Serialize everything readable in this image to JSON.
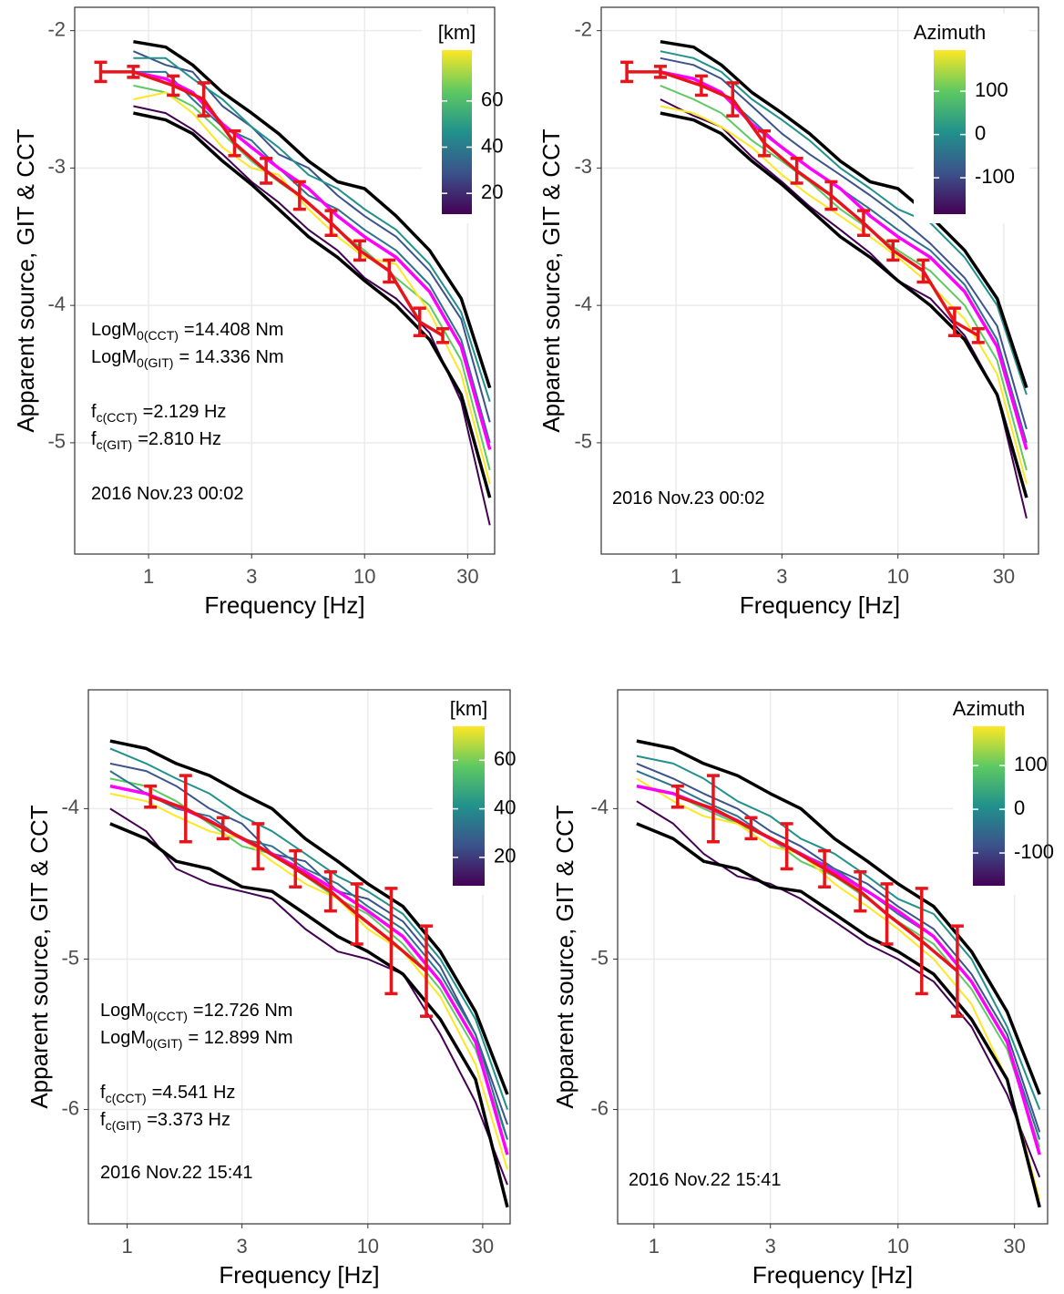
{
  "chart_data": [
    {
      "type": "line",
      "xlabel": "Frequency [Hz]",
      "ylabel": "Apparent source, GIT & CCT",
      "xscale": "log",
      "grid": true,
      "xlim": [
        0.455,
        40
      ],
      "ylim": [
        -5.81,
        -1.83
      ],
      "xticks": [
        1,
        3,
        10,
        30
      ],
      "yticks": [
        -2,
        -3,
        -4,
        -5
      ],
      "x": [
        0.85,
        1.2,
        1.6,
        2.2,
        3,
        4,
        5.5,
        7.5,
        10,
        14,
        20,
        28,
        38
      ],
      "series": [
        {
          "color": "#440154",
          "values": [
            -2.55,
            -2.6,
            -2.72,
            -2.9,
            -3.1,
            -3.25,
            -3.45,
            -3.6,
            -3.8,
            -3.95,
            -4.2,
            -4.7,
            -5.6
          ]
        },
        {
          "color": "#3b528b",
          "values": [
            -2.15,
            -2.25,
            -2.3,
            -2.55,
            -2.7,
            -2.9,
            -3.0,
            -3.2,
            -3.35,
            -3.5,
            -3.75,
            -4.1,
            -4.85
          ]
        },
        {
          "color": "#21918c",
          "values": [
            -2.2,
            -2.2,
            -2.35,
            -2.5,
            -2.7,
            -2.85,
            -3.05,
            -3.15,
            -3.3,
            -3.45,
            -3.7,
            -4.05,
            -4.7
          ]
        },
        {
          "color": "#5ec962",
          "values": [
            -2.4,
            -2.45,
            -2.55,
            -2.75,
            -2.95,
            -3.1,
            -3.25,
            -3.45,
            -3.6,
            -3.8,
            -4.0,
            -4.4,
            -5.2
          ]
        },
        {
          "color": "#fde725",
          "values": [
            -2.5,
            -2.45,
            -2.6,
            -2.85,
            -3.0,
            -3.05,
            -3.3,
            -3.5,
            -3.65,
            -3.7,
            -4.05,
            -4.5,
            -5.3
          ]
        },
        {
          "color": "#2c728e",
          "values": [
            -2.3,
            -2.3,
            -2.5,
            -2.7,
            -2.8,
            -3.0,
            -3.2,
            -3.3,
            -3.45,
            -3.6,
            -3.85,
            -4.25,
            -5.0
          ]
        },
        {
          "color": "#000000",
          "values": [
            -2.08,
            -2.12,
            -2.25,
            -2.45,
            -2.6,
            -2.75,
            -2.95,
            -3.1,
            -3.15,
            -3.35,
            -3.6,
            -3.95,
            -4.6
          ]
        },
        {
          "color": "#000000",
          "values": [
            -2.6,
            -2.65,
            -2.75,
            -2.95,
            -3.12,
            -3.3,
            -3.5,
            -3.65,
            -3.82,
            -4.0,
            -4.25,
            -4.65,
            -5.4
          ]
        },
        {
          "color": "#ff00ff",
          "values": [
            -2.3,
            -2.35,
            -2.45,
            -2.68,
            -2.85,
            -3.0,
            -3.15,
            -3.35,
            -3.5,
            -3.65,
            -3.9,
            -4.3,
            -5.05
          ]
        }
      ],
      "errorbars": {
        "color": "#e8141c",
        "x": [
          0.6,
          0.85,
          1.3,
          1.8,
          2.5,
          3.5,
          5,
          7,
          9.5,
          13,
          18,
          23
        ],
        "values": [
          -2.3,
          -2.3,
          -2.4,
          -2.5,
          -2.82,
          -3.02,
          -3.2,
          -3.4,
          -3.6,
          -3.75,
          -4.12,
          -4.22
        ],
        "errors": [
          0.07,
          0.04,
          0.07,
          0.12,
          0.09,
          0.09,
          0.1,
          0.09,
          0.07,
          0.08,
          0.1,
          0.05
        ]
      },
      "colorbar": {
        "title": "[km]",
        "lim": [
          11,
          82
        ],
        "ticks": [
          20,
          40,
          60
        ],
        "colors": [
          "#440154",
          "#3b528b",
          "#21918c",
          "#5ec962",
          "#fde725"
        ]
      },
      "annotations": [
        {
          "text": "LogM",
          "sub": "0(CCT)",
          "after": "=14.408 Nm"
        },
        {
          "text": "LogM",
          "sub": "0(GIT)",
          "after": "= 14.336 Nm"
        },
        {
          "text": "f",
          "sub": "c(CCT)",
          "after": "=2.129 Hz"
        },
        {
          "text": "f",
          "sub": "c(GIT)",
          "after": "=2.810 Hz"
        },
        {
          "text": "2016 Nov.23 00:02"
        }
      ]
    },
    {
      "type": "line",
      "xlabel": "Frequency [Hz]",
      "ylabel": "Apparent source, GIT & CCT",
      "xscale": "log",
      "grid": true,
      "xlim": [
        0.46,
        43
      ],
      "ylim": [
        -5.81,
        -1.83
      ],
      "xticks": [
        1,
        3,
        10,
        30
      ],
      "yticks": [
        -2,
        -3,
        -4,
        -5
      ],
      "x": [
        0.85,
        1.2,
        1.6,
        2.2,
        3,
        4,
        5.5,
        7.5,
        10,
        14,
        20,
        28,
        38
      ],
      "series": [
        {
          "color": "#440154",
          "values": [
            -2.5,
            -2.62,
            -2.7,
            -2.92,
            -3.1,
            -3.28,
            -3.45,
            -3.62,
            -3.82,
            -3.95,
            -4.22,
            -4.65,
            -5.55
          ]
        },
        {
          "color": "#3b528b",
          "values": [
            -2.2,
            -2.25,
            -2.35,
            -2.55,
            -2.75,
            -2.9,
            -3.05,
            -3.2,
            -3.35,
            -3.55,
            -3.8,
            -4.15,
            -4.9
          ]
        },
        {
          "color": "#21918c",
          "values": [
            -2.15,
            -2.2,
            -2.3,
            -2.5,
            -2.65,
            -2.8,
            -3.0,
            -3.15,
            -3.3,
            -3.4,
            -3.65,
            -4.0,
            -4.65
          ]
        },
        {
          "color": "#5ec962",
          "values": [
            -2.4,
            -2.5,
            -2.6,
            -2.8,
            -2.95,
            -3.1,
            -3.3,
            -3.45,
            -3.6,
            -3.75,
            -4.0,
            -4.4,
            -5.2
          ]
        },
        {
          "color": "#fde725",
          "values": [
            -2.55,
            -2.6,
            -2.7,
            -2.85,
            -3.05,
            -3.2,
            -3.35,
            -3.5,
            -3.65,
            -3.85,
            -4.1,
            -4.5,
            -5.3
          ]
        },
        {
          "color": "#2c728e",
          "values": [
            -2.3,
            -2.35,
            -2.45,
            -2.65,
            -2.85,
            -3.0,
            -3.15,
            -3.3,
            -3.45,
            -3.6,
            -3.85,
            -4.25,
            -5.0
          ]
        },
        {
          "color": "#000000",
          "values": [
            -2.08,
            -2.12,
            -2.25,
            -2.45,
            -2.6,
            -2.75,
            -2.95,
            -3.1,
            -3.15,
            -3.35,
            -3.6,
            -3.95,
            -4.6
          ]
        },
        {
          "color": "#000000",
          "values": [
            -2.6,
            -2.65,
            -2.75,
            -2.95,
            -3.12,
            -3.3,
            -3.5,
            -3.65,
            -3.82,
            -4.0,
            -4.25,
            -4.65,
            -5.4
          ]
        },
        {
          "color": "#ff00ff",
          "values": [
            -2.3,
            -2.35,
            -2.45,
            -2.68,
            -2.85,
            -3.0,
            -3.15,
            -3.35,
            -3.5,
            -3.65,
            -3.9,
            -4.3,
            -5.05
          ]
        }
      ],
      "errorbars": {
        "color": "#e8141c",
        "x": [
          0.6,
          0.85,
          1.3,
          1.8,
          2.5,
          3.5,
          5,
          7,
          9.5,
          13,
          18,
          23
        ],
        "values": [
          -2.3,
          -2.3,
          -2.4,
          -2.5,
          -2.82,
          -3.02,
          -3.2,
          -3.4,
          -3.6,
          -3.75,
          -4.12,
          -4.22
        ],
        "errors": [
          0.07,
          0.04,
          0.07,
          0.12,
          0.09,
          0.09,
          0.1,
          0.09,
          0.07,
          0.08,
          0.1,
          0.05
        ]
      },
      "colorbar": {
        "title": "Azimuth",
        "lim": [
          -184,
          195
        ],
        "ticks": [
          -100,
          0,
          100
        ],
        "colors": [
          "#440154",
          "#3b528b",
          "#21918c",
          "#5ec962",
          "#fde725"
        ]
      },
      "annotations": [
        {
          "text": "2016 Nov.23 00:02"
        }
      ]
    },
    {
      "type": "line",
      "xlabel": "Frequency [Hz]",
      "ylabel": "Apparent source, GIT & CCT",
      "xscale": "log",
      "grid": true,
      "xlim": [
        0.69,
        39
      ],
      "ylim": [
        -6.76,
        -3.21
      ],
      "xticks": [
        1,
        3,
        10,
        30
      ],
      "yticks": [
        -4,
        -5,
        -6
      ],
      "x": [
        0.85,
        1.2,
        1.6,
        2.2,
        3,
        4,
        5.5,
        7.5,
        10,
        14,
        20,
        28,
        38
      ],
      "series": [
        {
          "color": "#440154",
          "values": [
            -4.0,
            -4.15,
            -4.4,
            -4.5,
            -4.55,
            -4.6,
            -4.8,
            -4.95,
            -5.0,
            -5.1,
            -5.5,
            -5.95,
            -6.5
          ]
        },
        {
          "color": "#3b528b",
          "values": [
            -3.7,
            -3.75,
            -3.85,
            -4.0,
            -4.1,
            -4.3,
            -4.35,
            -4.55,
            -4.6,
            -4.75,
            -5.05,
            -5.5,
            -6.1
          ]
        },
        {
          "color": "#21918c",
          "values": [
            -3.6,
            -3.7,
            -3.8,
            -3.9,
            -4.05,
            -4.15,
            -4.3,
            -4.45,
            -4.55,
            -4.7,
            -5.0,
            -5.4,
            -6.0
          ]
        },
        {
          "color": "#5ec962",
          "values": [
            -3.8,
            -3.85,
            -3.95,
            -4.1,
            -4.25,
            -4.3,
            -4.45,
            -4.6,
            -4.7,
            -4.9,
            -5.2,
            -5.6,
            -6.2
          ]
        },
        {
          "color": "#fde725",
          "values": [
            -3.9,
            -3.95,
            -4.05,
            -4.15,
            -4.2,
            -4.35,
            -4.5,
            -4.6,
            -4.8,
            -4.95,
            -5.25,
            -5.7,
            -6.4
          ]
        },
        {
          "color": "#2c728e",
          "values": [
            -3.75,
            -3.9,
            -4.0,
            -4.05,
            -4.2,
            -4.25,
            -4.4,
            -4.5,
            -4.65,
            -4.8,
            -5.1,
            -5.5,
            -6.2
          ]
        },
        {
          "color": "#000000",
          "values": [
            -3.55,
            -3.6,
            -3.7,
            -3.78,
            -3.9,
            -4.0,
            -4.2,
            -4.35,
            -4.5,
            -4.65,
            -4.95,
            -5.35,
            -5.9
          ]
        },
        {
          "color": "#000000",
          "values": [
            -4.1,
            -4.2,
            -4.35,
            -4.4,
            -4.52,
            -4.55,
            -4.7,
            -4.85,
            -4.95,
            -5.1,
            -5.4,
            -5.8,
            -6.65
          ]
        },
        {
          "color": "#ff00ff",
          "values": [
            -3.85,
            -3.9,
            -3.98,
            -4.08,
            -4.2,
            -4.3,
            -4.42,
            -4.55,
            -4.68,
            -4.85,
            -5.15,
            -5.55,
            -6.3
          ]
        }
      ],
      "errorbars": {
        "color": "#e8141c",
        "x": [
          1.25,
          1.75,
          2.5,
          3.5,
          5,
          7,
          9,
          12.5,
          17.5
        ],
        "values": [
          -3.92,
          -4.0,
          -4.13,
          -4.25,
          -4.4,
          -4.55,
          -4.7,
          -4.88,
          -5.08
        ],
        "errors": [
          0.07,
          0.22,
          0.07,
          0.15,
          0.12,
          0.13,
          0.2,
          0.35,
          0.3
        ]
      },
      "colorbar": {
        "title": "[km]",
        "lim": [
          8.3,
          74
        ],
        "ticks": [
          20,
          40,
          60
        ],
        "colors": [
          "#440154",
          "#3b528b",
          "#21918c",
          "#5ec962",
          "#fde725"
        ]
      },
      "annotations": [
        {
          "text": "LogM",
          "sub": "0(CCT)",
          "after": "=12.726 Nm"
        },
        {
          "text": "LogM",
          "sub": "0(GIT)",
          "after": "= 12.899 Nm"
        },
        {
          "text": "f",
          "sub": "c(CCT)",
          "after": "=4.541 Hz"
        },
        {
          "text": "f",
          "sub": "c(GIT)",
          "after": "=3.373 Hz"
        },
        {
          "text": "2016 Nov.22 15:41"
        }
      ]
    },
    {
      "type": "line",
      "xlabel": "Frequency [Hz]",
      "ylabel": "Apparent source, GIT & CCT",
      "xscale": "log",
      "grid": true,
      "xlim": [
        0.71,
        41
      ],
      "ylim": [
        -6.76,
        -3.21
      ],
      "xticks": [
        1,
        3,
        10,
        30
      ],
      "yticks": [
        -4,
        -5,
        -6
      ],
      "x": [
        0.85,
        1.2,
        1.6,
        2.2,
        3,
        4,
        5.5,
        7.5,
        10,
        14,
        20,
        28,
        38
      ],
      "series": [
        {
          "color": "#440154",
          "values": [
            -3.95,
            -4.1,
            -4.3,
            -4.45,
            -4.5,
            -4.6,
            -4.75,
            -4.9,
            -5.0,
            -5.15,
            -5.45,
            -5.9,
            -6.45
          ]
        },
        {
          "color": "#3b528b",
          "values": [
            -3.7,
            -3.8,
            -3.9,
            -4.0,
            -4.15,
            -4.25,
            -4.4,
            -4.5,
            -4.65,
            -4.8,
            -5.1,
            -5.5,
            -6.15
          ]
        },
        {
          "color": "#21918c",
          "values": [
            -3.65,
            -3.7,
            -3.8,
            -3.95,
            -4.05,
            -4.2,
            -4.3,
            -4.45,
            -4.6,
            -4.7,
            -5.0,
            -5.45,
            -6.0
          ]
        },
        {
          "color": "#5ec962",
          "values": [
            -3.85,
            -3.9,
            -4.0,
            -4.1,
            -4.2,
            -4.35,
            -4.45,
            -4.6,
            -4.75,
            -4.9,
            -5.2,
            -5.6,
            -6.25
          ]
        },
        {
          "color": "#fde725",
          "values": [
            -3.8,
            -3.95,
            -4.05,
            -4.1,
            -4.25,
            -4.3,
            -4.5,
            -4.65,
            -4.8,
            -5.0,
            -5.3,
            -5.8,
            -6.6
          ]
        },
        {
          "color": "#2c728e",
          "values": [
            -3.75,
            -3.85,
            -3.95,
            -4.05,
            -4.2,
            -4.3,
            -4.4,
            -4.55,
            -4.7,
            -4.85,
            -5.15,
            -5.55,
            -6.2
          ]
        },
        {
          "color": "#000000",
          "values": [
            -3.55,
            -3.6,
            -3.7,
            -3.78,
            -3.9,
            -4.0,
            -4.2,
            -4.35,
            -4.5,
            -4.65,
            -4.95,
            -5.35,
            -5.9
          ]
        },
        {
          "color": "#000000",
          "values": [
            -4.1,
            -4.2,
            -4.35,
            -4.4,
            -4.52,
            -4.55,
            -4.7,
            -4.85,
            -4.95,
            -5.1,
            -5.4,
            -5.8,
            -6.65
          ]
        },
        {
          "color": "#ff00ff",
          "values": [
            -3.85,
            -3.9,
            -3.98,
            -4.08,
            -4.2,
            -4.3,
            -4.42,
            -4.55,
            -4.68,
            -4.85,
            -5.15,
            -5.55,
            -6.3
          ]
        }
      ],
      "errorbars": {
        "color": "#e8141c",
        "x": [
          1.25,
          1.75,
          2.5,
          3.5,
          5,
          7,
          9,
          12.5,
          17.5
        ],
        "values": [
          -3.92,
          -4.0,
          -4.13,
          -4.25,
          -4.4,
          -4.55,
          -4.7,
          -4.88,
          -5.08
        ],
        "errors": [
          0.07,
          0.22,
          0.07,
          0.15,
          0.12,
          0.13,
          0.2,
          0.35,
          0.3
        ]
      },
      "colorbar": {
        "title": "Azimuth",
        "lim": [
          -175,
          190
        ],
        "ticks": [
          -100,
          0,
          100
        ],
        "colors": [
          "#440154",
          "#3b528b",
          "#21918c",
          "#5ec962",
          "#fde725"
        ]
      },
      "annotations": [
        {
          "text": "2016 Nov.22 15:41"
        }
      ]
    }
  ]
}
